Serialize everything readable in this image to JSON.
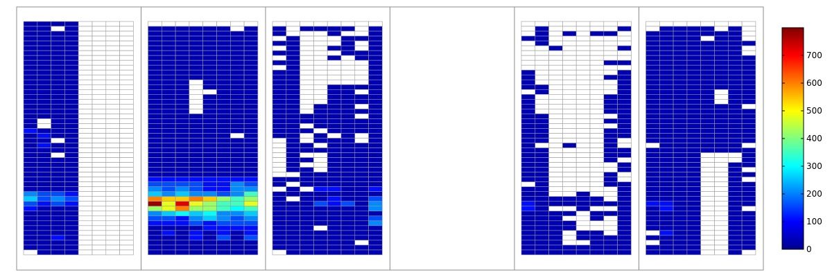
{
  "chart_data": {
    "type": "heatmap",
    "title": "",
    "colorbar": {
      "colormap": "jet",
      "vmin": 0,
      "vmax": 800,
      "ticks": [
        0,
        100,
        200,
        300,
        400,
        500,
        600,
        700
      ],
      "tick_labels": [
        "0",
        "100",
        "200",
        "300",
        "400",
        "500",
        "600",
        "700"
      ]
    },
    "missing_color": "#ffffff",
    "row_count": 48,
    "col_count": 8,
    "panels": [
      {
        "name": "",
        "rows": [
          "AAAA____",
          "AA.A____",
          "AAAA____",
          "AAAA____",
          "AAAA____",
          "AAAA____",
          "AAAA____",
          "AAAA____",
          "AAAA____",
          "AAAA____",
          "AAAA____",
          "AAAA____",
          "AAAA____",
          "AAAA____",
          "AAAA____",
          "AAAA____",
          "AAAA____",
          "AAAA____",
          "AAAA____",
          "AAAA____",
          "A.AA____",
          "A.AA____",
          "BAAA____",
          "ABAA____",
          "AA.A____",
          "ABAA____",
          "AAAA____",
          "AA.A____",
          "AAAA____",
          "AAAA____",
          "AAAA____",
          "AAAA____",
          "AAAA____",
          "AAAA____",
          "AAAA____",
          "DCCB____",
          "ECDC____",
          "CBCB____",
          "BAAA____",
          "AAAA____",
          "AAAA____",
          "AAAA____",
          "AAAA____",
          "AAAA____",
          "AABA____",
          "AAAA____",
          "AAAA____",
          ".AAA____"
        ]
      },
      {
        "name": "",
        "rows": [
          "........",
          "AAAAAA.A",
          "AAAAAAAA",
          "AAAAAAAA",
          "AAAAAAAA",
          "AAAAAAAA",
          "AAAAAAAA",
          "AAAAAAAA",
          "AAAAAAAA",
          "AAAAAAAA",
          "AAAAAAAA",
          "AAAAAAAA",
          "AAA.AAAA",
          "AAA.AAAA",
          "AAA..AAA",
          "AAA.AAAA",
          "AAA.AAAA",
          "AAA.AAAA",
          "AAA.AAAA",
          "AAAAAAAA",
          "AAAAAAAA",
          "AAAAAAAA",
          "AAAAAAAA",
          "AAAAAA.A",
          "AAAAAAAA",
          "AAAAAAAA",
          "AAAAAAAA",
          "AAAAAAAA",
          "AAAAAAAA",
          "AAAAAAAA",
          "AAAAAAAA",
          "AAAAAAAA",
          "BBBBBBBB",
          "CCCCBBDC",
          "DCDCBBDD",
          "EDEDDCDG",
          "KJJKJHGH",
          "NIMIHGGI",
          "HIKHHGFG",
          "DEFEFDDE",
          "CCBDEDCD",
          "BBBCBCCC",
          "AAAABBBB",
          "ABABABAB",
          "AAABACAC",
          "AAAAAAAA",
          "AAAAAAAA",
          "AAAAAAAA"
        ]
      },
      {
        "name": "",
        "rows": [
          "........",
          "A.AAAA.A",
          "A...A..A",
          ".A...AAA",
          "AA...A.A",
          ".A..AA.A",
          "AA...AAA",
          ".A..A.AA",
          "AA.....A",
          ".A.....A",
          "AA.....A",
          "AA.....A",
          "AA.....A",
          "AA..AAAA",
          "AA..AA.A",
          "AA..AAAA",
          "AA..AAAA",
          "AA.AAA.A",
          "AA.AAAAA",
          "AAAAAA.A",
          "AAAAAAAA",
          "AA.AAAAA",
          "AAA.AAAA",
          "AA.A.A.A",
          ".A.AAA.A",
          ".AA.AAAA",
          ".AAAAAAA",
          ".A..AAAA",
          ".AA.AAAA",
          ".A..AAAA",
          ".AA.AAAA",
          "..AAAAAA",
          "AAAAAAAA",
          "A.AAAAAA",
          ".A.BBAAB",
          "AAAAAAAA",
          "A.AABAAC",
          "AAACBCAD",
          "AAAAAAAD",
          "AAAAAAAA",
          "AAAAAAAC",
          "AAAAAAAD",
          "AAA.AAAA",
          "AAAAAAAA",
          "AAAAAAAA",
          "AAAAAA.A",
          "AAAAAAAA",
          ".AAAAAAA"
        ]
      },
      {
        "name": "",
        "rows": [
          "........",
          "........",
          "........",
          "........",
          "........",
          "........",
          "........",
          "........",
          "........",
          "........",
          "........",
          "........",
          "........",
          "........",
          "........",
          "........",
          "........",
          "........",
          "........",
          "........",
          "........",
          "........",
          "........",
          "........",
          "........",
          "........",
          "........",
          "........",
          "........",
          "........",
          "........",
          "........",
          "........",
          "........",
          "........",
          "........",
          "........",
          "........",
          "........",
          "........",
          "........",
          "........",
          "........",
          "........",
          "........",
          "........",
          "........",
          "........"
        ]
      },
      {
        "name": "",
        "rows": [
          "........",
          ".A.....A",
          ".A.A.AA.",
          "AA......",
          ".A......",
          "..A....A",
          "........",
          "........",
          "......AA",
          "........",
          "A......A",
          "A.....AA",
          "A......A",
          "AA.....A",
          ".A.....A",
          "A.....AA",
          "A.....AA",
          "A.....AA",
          "A.....AA",
          "AA.....A",
          "AA....AA",
          "AA.....A",
          "AA....AA",
          "AA....AA",
          "AA....A.",
          "A..A..A.",
          "AA....AA",
          "AA....AA",
          "AA....A.",
          "AA.....A",
          "AA.....A",
          "AA....A.",
          "AA....A.",
          ".A....AA",
          "AA.....A",
          "AA..A..A",
          "AAAAAA.A",
          "BAAAAAAA",
          "BA..A..A",
          "AAAA.AAA",
          "AAA..A.A",
          "AAAA...A",
          "AAAA...A",
          "AAA.AA.A",
          "AAA.AAAA",
          "AAA..AAA",
          "AAAAAAAA",
          "AAAAAAAA"
        ]
      },
      {
        "name": "",
        "rows": [
          "........",
          ".AAAA.A.",
          "AAAAAAA.",
          "AAAA.AA.",
          "AAAAAAAA",
          "AAAAAAA.",
          "AAAAAAA.",
          "AAAAAAAA",
          "AAAAAAAA",
          "AAAAAAAA",
          "AAAAAAAA",
          "AAAAAAAA",
          "AAAAAAAA",
          "AAAAAAAA",
          "AAAAA.AA",
          "AAAAA.AA",
          "AAAAA.AA",
          "AAAAAAA.",
          "AAAAAAAA",
          "AAAAAAAA",
          "AAAAAAAA",
          "AAAAAAAA",
          "AAAAAAAA",
          "AAAAAAAA",
          "AAAAAAAA",
          ".AAAAAA.",
          "AAAAAAAA",
          "AAAA...A",
          "AAAA...A",
          "AAAA..AA",
          "AAAA..A.",
          "AAAA..AA",
          "AAAA..A.",
          "AAAA..AA",
          "AAAA..AA",
          "AAAA..AA",
          "AAAA..AA",
          "BBAA..AA",
          "ABAA..A.",
          "AAAA..AA",
          "AAAA..AA",
          "AAAA..AA",
          "AAAA..AA",
          ".BAA..AA",
          "AAAA..AA",
          ".AAA..AA",
          "AAAA..AA",
          "AAAA..A."
        ]
      }
    ],
    "value_legend": {
      ".": null,
      "_": null,
      "A": 40,
      "B": 110,
      "C": 160,
      "D": 210,
      "E": 260,
      "F": 300,
      "G": 350,
      "H": 420,
      "I": 480,
      "J": 540,
      "K": 600,
      "L": 660,
      "M": 720,
      "N": 780
    }
  }
}
